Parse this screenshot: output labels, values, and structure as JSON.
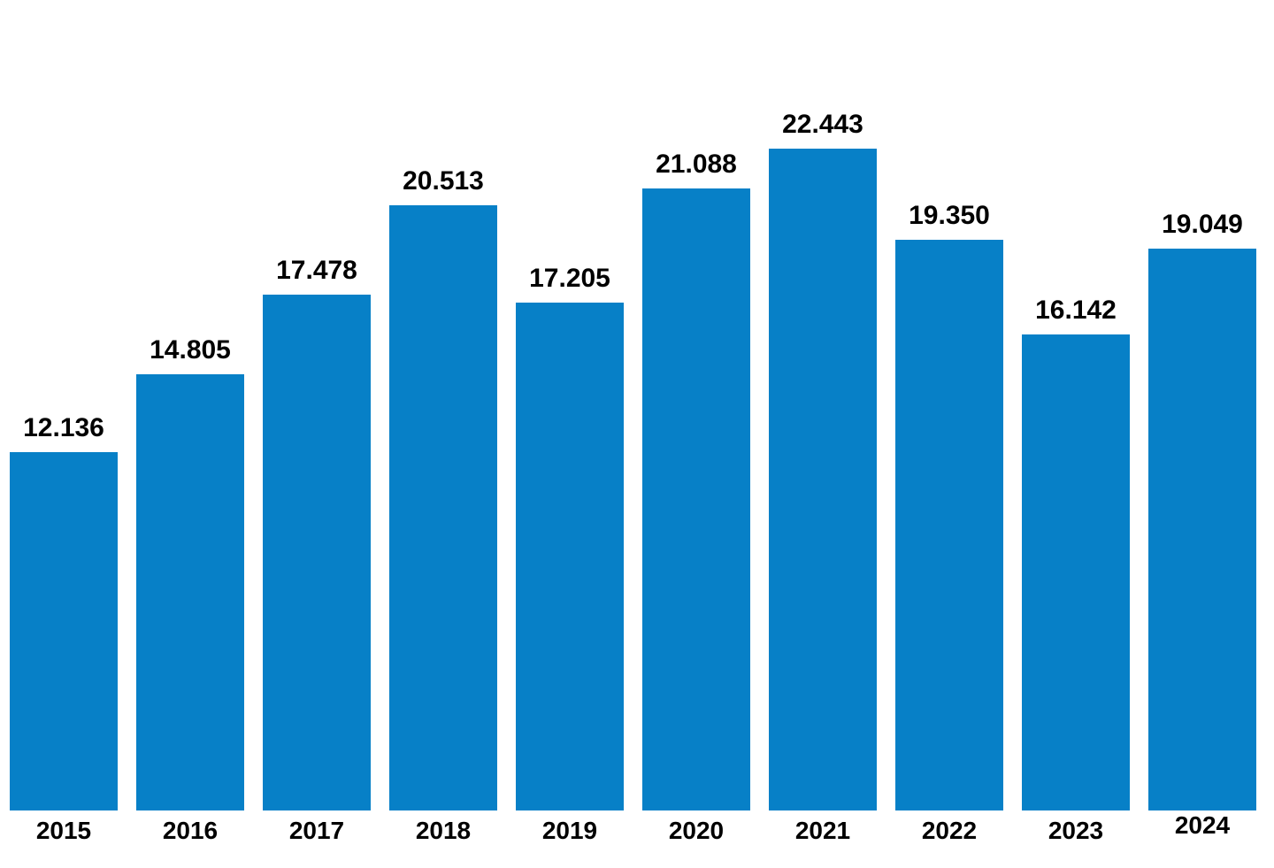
{
  "chart_data": {
    "type": "bar",
    "categories": [
      "2015",
      "2016",
      "2017",
      "2018",
      "2019",
      "2020",
      "2021",
      "2022",
      "2023",
      "2024"
    ],
    "values": [
      12136,
      14805,
      17478,
      20513,
      17205,
      21088,
      22443,
      19350,
      16142,
      19049
    ],
    "labels": [
      "12.136",
      "14.805",
      "17.478",
      "20.513",
      "17.205",
      "21.088",
      "22.443",
      "19.350",
      "16.142",
      "19.049"
    ],
    "title": "",
    "xlabel": "",
    "ylabel": "",
    "ylim": [
      0,
      24000
    ],
    "grid": false,
    "legend": false,
    "bar_color": "#0780C7",
    "label_color": "#000000",
    "background_color": "#FFFFFF"
  }
}
